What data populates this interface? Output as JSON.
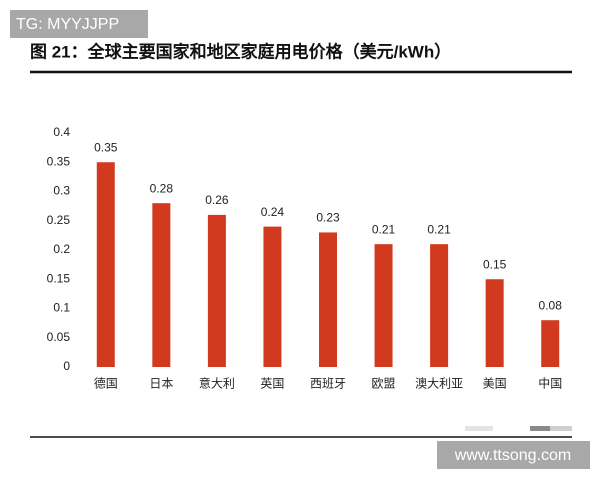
{
  "watermark_top": "TG: MYYJJPP",
  "watermark_bottom": "www.ttsong.com",
  "chart_data": {
    "type": "bar",
    "title": "图 21：全球主要国家和地区家庭用电价格（美元/kWh）",
    "categories": [
      "德国",
      "日本",
      "意大利",
      "英国",
      "西班牙",
      "欧盟",
      "澳大利亚",
      "美国",
      "中国"
    ],
    "values": [
      0.35,
      0.28,
      0.26,
      0.24,
      0.23,
      0.21,
      0.21,
      0.15,
      0.08
    ],
    "color": "#d13a1e",
    "ylim": [
      0,
      0.4
    ],
    "yticks": [
      0,
      0.05,
      0.1,
      0.15,
      0.2,
      0.25,
      0.3,
      0.35,
      0.4
    ],
    "grid": false
  }
}
